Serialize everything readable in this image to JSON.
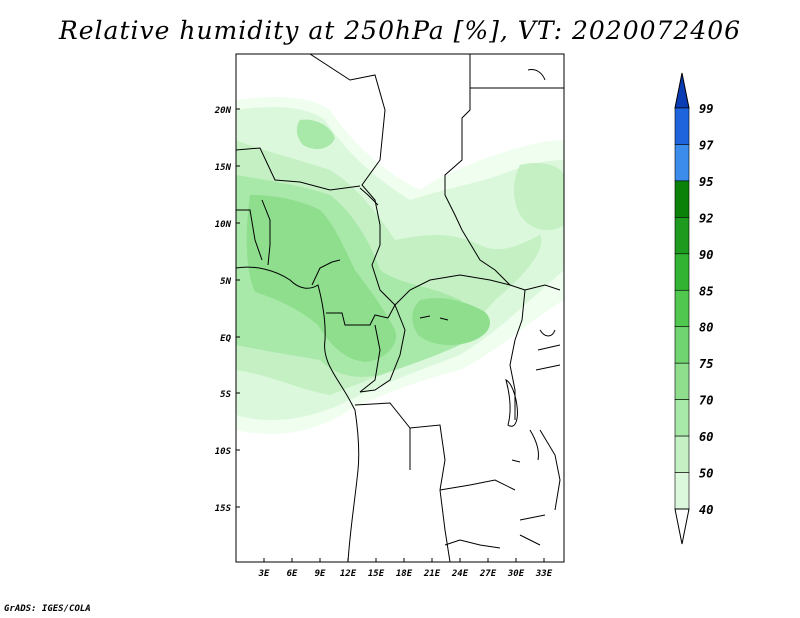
{
  "title": "Relative humidity at 250hPa [%], VT: 2020072406",
  "credit": "GrADS: IGES/COLA",
  "map": {
    "lat_labels": [
      "20N",
      "15N",
      "10N",
      "5N",
      "EQ",
      "5S",
      "10S",
      "15S"
    ],
    "lon_labels": [
      "3E",
      "6E",
      "9E",
      "12E",
      "15E",
      "18E",
      "21E",
      "24E",
      "27E",
      "30E",
      "33E"
    ],
    "lon_range": [
      0,
      35
    ],
    "lat_range": [
      -20,
      25
    ]
  },
  "colorbar": {
    "levels": [
      "40",
      "50",
      "60",
      "70",
      "75",
      "80",
      "85",
      "90",
      "92",
      "95",
      "97",
      "99"
    ],
    "colors": [
      "#f0fef0",
      "#dcf8dc",
      "#c4f0c4",
      "#a8e8a8",
      "#8ede8e",
      "#70d470",
      "#50c850",
      "#32b432",
      "#1e9a1e",
      "#0a820a",
      "#3c8cec",
      "#1e64dc",
      "#0a3cb4"
    ]
  },
  "field_colors": {
    "c40": "#f0fef0",
    "c50": "#dcf8dc",
    "c60": "#c4f0c4",
    "c70": "#a8e8a8",
    "c75": "#8ede8e"
  }
}
